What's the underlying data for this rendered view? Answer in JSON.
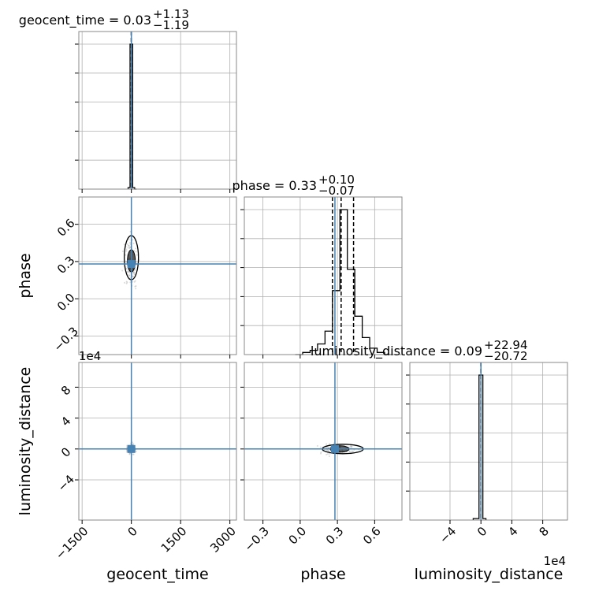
{
  "chart_data": {
    "type": "corner",
    "parameters": [
      "geocent_time",
      "phase",
      "luminosity_distance"
    ],
    "truths": {
      "geocent_time": 0,
      "phase": 0.28,
      "luminosity_distance": 0
    },
    "titles": [
      {
        "param": "geocent_time",
        "text": "geocent_time = 0.03",
        "plus": "+1.13",
        "minus": "−1.19"
      },
      {
        "param": "phase",
        "text": "phase = 0.33",
        "plus": "+0.10",
        "minus": "−0.07"
      },
      {
        "param": "luminosity_distance",
        "text": "luminosity_distance = 0.09",
        "plus": "+22.94",
        "minus": "−20.72"
      }
    ],
    "axes": {
      "geocent_time": {
        "range": [
          -1600,
          3200
        ],
        "ticks": [
          -1500,
          0,
          1500,
          3000
        ],
        "tick_labels": [
          "−1500",
          "0",
          "1500",
          "3000"
        ],
        "label": "geocent_time"
      },
      "phase": {
        "range": [
          -0.45,
          0.82
        ],
        "ticks": [
          -0.3,
          0.0,
          0.3,
          0.6
        ],
        "tick_labels": [
          "−0.3",
          "0.0",
          "0.3",
          "0.6"
        ],
        "label": "phase"
      },
      "luminosity_distance": {
        "range": [
          -92000,
          112000
        ],
        "ticks": [
          -40000,
          0,
          40000,
          80000
        ],
        "tick_labels": [
          "−4",
          "0",
          "4",
          "8"
        ],
        "label": "luminosity_distance",
        "offset_text": "1e4"
      }
    },
    "histograms": {
      "geocent_time": {
        "edges": [
          -100,
          -40,
          40,
          100,
          160
        ],
        "counts": [
          1,
          100,
          1,
          0
        ],
        "quantiles": [
          -1.16,
          0.03,
          1.16
        ]
      },
      "phase": {
        "edges": [
          -0.04,
          0.02,
          0.08,
          0.14,
          0.2,
          0.26,
          0.32,
          0.38,
          0.44,
          0.5,
          0.56,
          0.62,
          0.68,
          0.74
        ],
        "counts": [
          0,
          1,
          2,
          5,
          11,
          30,
          68,
          40,
          18,
          8,
          3,
          1,
          0
        ],
        "quantiles": [
          0.26,
          0.33,
          0.43
        ]
      },
      "luminosity_distance": {
        "edges": [
          -10000,
          -2500,
          2500,
          6500
        ],
        "counts": [
          1,
          100,
          1
        ],
        "quantiles": [
          -20.63,
          0.09,
          23.03
        ]
      }
    },
    "grid": true
  }
}
